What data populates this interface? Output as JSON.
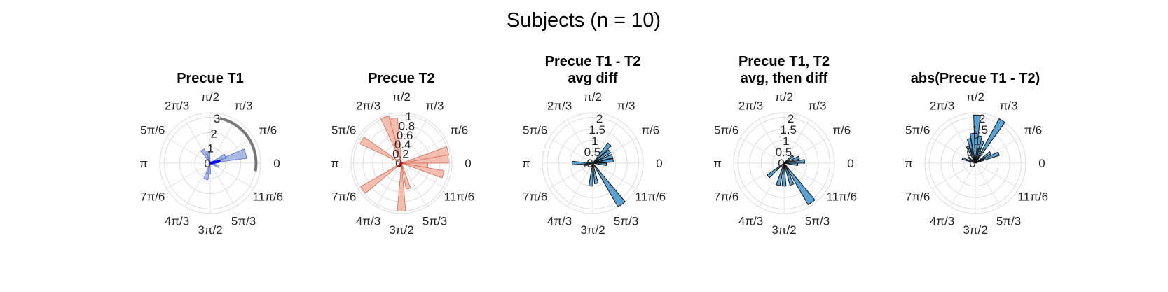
{
  "figure": {
    "title": "Subjects (n = 10)"
  },
  "colors": {
    "t1_fill": "#8fa3dc",
    "t1_edge": "#5c6fc8",
    "t1_vector": "#0000ee",
    "t2_fill": "#f0a896",
    "t2_edge": "#d46a55",
    "t2_vector": "#dd1111",
    "diff_fill": "#5aa2d4",
    "diff_edge": "#111111",
    "arc": "#777777",
    "grid": "#dcdcdc"
  },
  "angle_labels": [
    "0",
    "π/6",
    "π/3",
    "π/2",
    "2π/3",
    "5π/6",
    "π",
    "7π/6",
    "4π/3",
    "3π/2",
    "5π/3",
    "11π/6"
  ],
  "chart_data": [
    {
      "type": "polar-histogram",
      "title_lines": [
        "Precue T1"
      ],
      "rmax": 3.3,
      "rticks": [
        0,
        1,
        2,
        3
      ],
      "rtick_labels": [
        "0",
        "1",
        "2",
        "3"
      ],
      "style": "t1",
      "bin_width_deg": 15,
      "bins": [
        {
          "angle_deg": 15,
          "value": 2.4
        },
        {
          "angle_deg": 25,
          "value": 1.1
        },
        {
          "angle_deg": 100,
          "value": 0.8
        },
        {
          "angle_deg": 120,
          "value": 1.0
        },
        {
          "angle_deg": 255,
          "value": 1.1
        },
        {
          "angle_deg": 265,
          "value": 0.7
        },
        {
          "angle_deg": 340,
          "value": 0.6
        }
      ],
      "mean_vector": {
        "angle_deg": 12,
        "length": 0.6
      },
      "arc": {
        "start_deg": -10,
        "end_deg": 78,
        "r": 3.0
      }
    },
    {
      "type": "polar-histogram",
      "title_lines": [
        "Precue T2"
      ],
      "rmax": 1.05,
      "rticks": [
        0,
        0.2,
        0.4,
        0.6,
        0.8,
        1
      ],
      "rtick_labels": [
        "0",
        "0.2",
        "0.4",
        "0.6",
        "0.8",
        "1"
      ],
      "style": "t2",
      "bin_width_deg": 10,
      "bins": [
        {
          "angle_deg": 5,
          "value": 0.98
        },
        {
          "angle_deg": 15,
          "value": 1.0
        },
        {
          "angle_deg": 355,
          "value": 0.55
        },
        {
          "angle_deg": 345,
          "value": 0.9
        },
        {
          "angle_deg": 100,
          "value": 0.95
        },
        {
          "angle_deg": 110,
          "value": 1.02
        },
        {
          "angle_deg": 150,
          "value": 0.95
        },
        {
          "angle_deg": 215,
          "value": 0.98
        },
        {
          "angle_deg": 270,
          "value": 1.0
        },
        {
          "angle_deg": 285,
          "value": 0.55
        }
      ],
      "mean_vector": {
        "angle_deg": 230,
        "length": 0.05
      }
    },
    {
      "type": "polar-histogram",
      "title_lines": [
        "Precue T1 - T2",
        "avg diff"
      ],
      "rmax": 2.2,
      "rticks": [
        0,
        0.5,
        1,
        1.5,
        2
      ],
      "rtick_labels": [
        "0",
        "0.5",
        "1",
        "1.5",
        "2"
      ],
      "style": "diff",
      "bin_width_deg": 10,
      "bins": [
        {
          "angle_deg": 48,
          "value": 1.1
        },
        {
          "angle_deg": 35,
          "value": 0.9
        },
        {
          "angle_deg": 20,
          "value": 0.9
        },
        {
          "angle_deg": 8,
          "value": 0.9
        },
        {
          "angle_deg": 355,
          "value": 0.6
        },
        {
          "angle_deg": 180,
          "value": 0.9
        },
        {
          "angle_deg": 195,
          "value": 0.4
        },
        {
          "angle_deg": 265,
          "value": 1.0
        },
        {
          "angle_deg": 280,
          "value": 0.9
        },
        {
          "angle_deg": 305,
          "value": 2.2
        }
      ]
    },
    {
      "type": "polar-histogram",
      "title_lines": [
        "Precue T1, T2",
        "avg, then diff"
      ],
      "rmax": 2.2,
      "rticks": [
        0,
        0.5,
        1,
        1.5,
        2
      ],
      "rtick_labels": [
        "0",
        "0.5",
        "1",
        "1.5",
        "2"
      ],
      "style": "diff",
      "bin_width_deg": 10,
      "bins": [
        {
          "angle_deg": 5,
          "value": 0.9
        },
        {
          "angle_deg": 355,
          "value": 0.6
        },
        {
          "angle_deg": 20,
          "value": 0.7
        },
        {
          "angle_deg": 40,
          "value": 0.5
        },
        {
          "angle_deg": 220,
          "value": 0.9
        },
        {
          "angle_deg": 255,
          "value": 1.0
        },
        {
          "angle_deg": 270,
          "value": 1.0
        },
        {
          "angle_deg": 290,
          "value": 1.0
        },
        {
          "angle_deg": 305,
          "value": 2.1
        }
      ]
    },
    {
      "type": "polar-histogram",
      "title_lines": [
        "abs(Precue T1 - T2)"
      ],
      "rmax": 2.2,
      "rticks": [
        0,
        0.5,
        1,
        1.5,
        2
      ],
      "rtick_labels": [
        "0",
        "0.5",
        "1",
        "1.5",
        "2"
      ],
      "style": "diff",
      "bin_width_deg": 8,
      "bins": [
        {
          "angle_deg": 58,
          "value": 2.2
        },
        {
          "angle_deg": 88,
          "value": 2.1
        },
        {
          "angle_deg": 96,
          "value": 1.3
        },
        {
          "angle_deg": 105,
          "value": 1.1
        },
        {
          "angle_deg": 115,
          "value": 0.8
        },
        {
          "angle_deg": 72,
          "value": 1.0
        },
        {
          "angle_deg": 80,
          "value": 1.2
        },
        {
          "angle_deg": 22,
          "value": 1.1
        },
        {
          "angle_deg": 35,
          "value": 0.8
        },
        {
          "angle_deg": 160,
          "value": 0.6
        },
        {
          "angle_deg": 140,
          "value": 0.4
        }
      ]
    }
  ]
}
